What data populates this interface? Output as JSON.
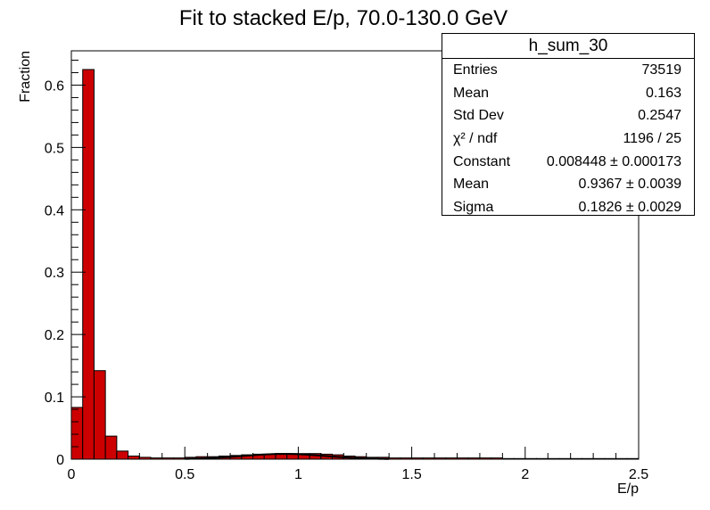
{
  "chart_data": {
    "type": "bar",
    "title": "Fit to stacked E/p, 70.0-130.0 GeV",
    "xlabel": "E/p",
    "ylabel": "Fraction",
    "xlim": [
      0,
      2.5
    ],
    "ylim": [
      0,
      0.655
    ],
    "x_ticks": [
      "0",
      "0.5",
      "1",
      "1.5",
      "2",
      "2.5"
    ],
    "y_ticks": [
      "0",
      "0.1",
      "0.2",
      "0.3",
      "0.4",
      "0.5",
      "0.6"
    ],
    "bin_width": 0.05,
    "bin_start": 0,
    "values": [
      0.083,
      0.625,
      0.142,
      0.037,
      0.013,
      0.005,
      0.003,
      0.002,
      0.002,
      0.002,
      0.003,
      0.004,
      0.004,
      0.005,
      0.006,
      0.007,
      0.008,
      0.008,
      0.009,
      0.009,
      0.009,
      0.009,
      0.008,
      0.007,
      0.005,
      0.004,
      0.003,
      0.003,
      0.002,
      0.002,
      0.002,
      0.002,
      0.002,
      0.002,
      0.002,
      0.002,
      0.002,
      0.002,
      0.001,
      0.001,
      0.001,
      0.001,
      0.001,
      0.001,
      0.001,
      0.001,
      0.001,
      0.001,
      0.001,
      0.001
    ],
    "bar_color": "#cc0000",
    "fit_color": "#000000",
    "fit": {
      "constant": 0.008448,
      "mean": 0.9367,
      "sigma": 0.1826
    },
    "stats": {
      "name": "h_sum_30",
      "rows": [
        {
          "label": "Entries",
          "value": "73519"
        },
        {
          "label": "Mean",
          "value": "0.163"
        },
        {
          "label": "Std Dev",
          "value": "0.2547"
        },
        {
          "label": "χ² / ndf",
          "value": "1196 / 25"
        },
        {
          "label": "Constant",
          "value": "0.008448 ± 0.000173"
        },
        {
          "label": "Mean",
          "value": "0.9367 ± 0.0039"
        },
        {
          "label": "Sigma",
          "value": "0.1826 ± 0.0029"
        }
      ]
    }
  }
}
